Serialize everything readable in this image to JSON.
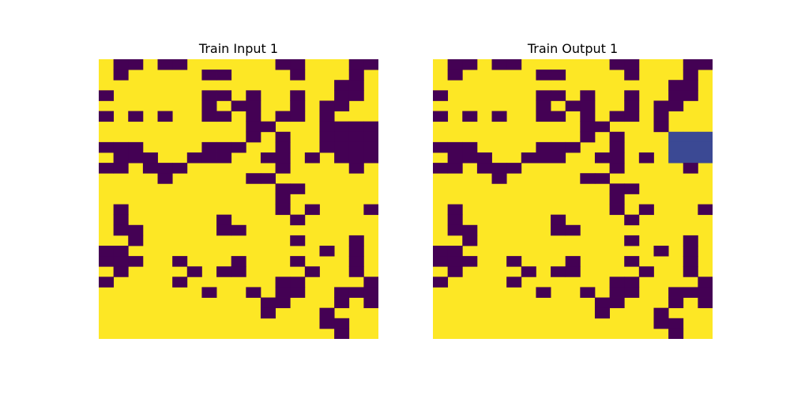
{
  "colors": {
    "background": "#ffffff",
    "palette": [
      "#fde725",
      "#440154",
      "#3b4994"
    ]
  },
  "panels": [
    {
      "title": "Train Input 1",
      "grid": [
        "0110110000001100011",
        "0100000110000100010",
        "0000000000000000110",
        "1000000110100100110",
        "0000000101100101100",
        "1010100110101101000",
        "0000000000110001111",
        "0000000000101001111",
        "1110000111001001111",
        "0111001110011010111",
        "1101110000001000010",
        "0000100000110000000",
        "0000000000001100000",
        "0000000000001000000",
        "0100000000001010001",
        "0100000010000100000",
        "0110000011000000000",
        "0010000000000100010",
        "1100000000000001010",
        "1110010001000100010",
        "0100001011000010010",
        "1000010000001100001",
        "0000000100101100111",
        "0000000000011000101",
        "0000000000010001000",
        "0000000000000001100",
        "0000000000000000100"
      ]
    },
    {
      "title": "Train Output 1",
      "grid": [
        "0110110000001100011",
        "0100000110000100010",
        "0000000000000000110",
        "1000000110100100110",
        "0000000101100101100",
        "1010100110101101000",
        "0000000000110001000",
        "0000000000101000222",
        "1110000111001000222",
        "0111001110011010222",
        "1101110000001000010",
        "0000100000110000000",
        "0000000000001100000",
        "0000000000001000000",
        "0100000000001010001",
        "0100000010000100000",
        "0110000011000000000",
        "0010000000000100010",
        "1100000000000001010",
        "1110010001000100010",
        "0100001011000010010",
        "1000010000001100001",
        "0000000100101100111",
        "0000000000011000101",
        "0000000000010001000",
        "0000000000000001100",
        "0000000000000000100"
      ]
    }
  ]
}
